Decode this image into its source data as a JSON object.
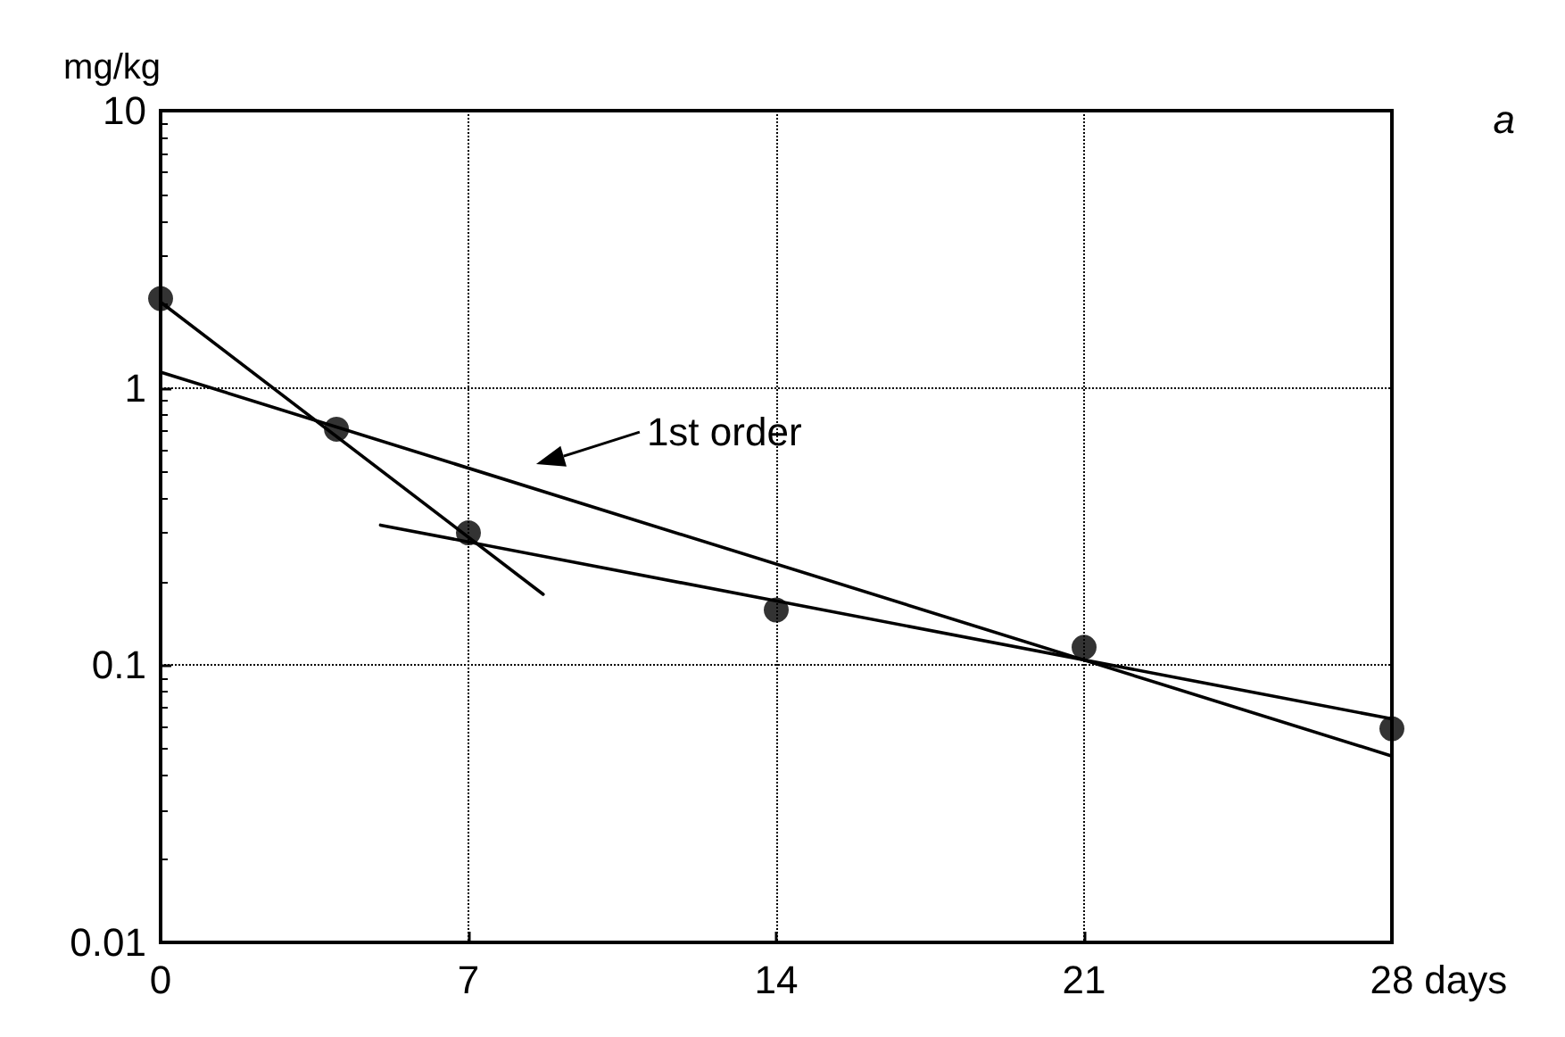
{
  "chart_data": {
    "type": "scatter",
    "ylabel": "mg/kg",
    "xlabel": "days",
    "annotations": [
      "1st order",
      "a"
    ],
    "xlim": [
      0,
      28
    ],
    "xticks": [
      0,
      7,
      14,
      21,
      28
    ],
    "ylim": [
      0.01,
      10
    ],
    "yticks": [
      0.01,
      0.1,
      1,
      10
    ],
    "log": "y",
    "grid": true,
    "series": [
      {
        "color": "#000000",
        "marker": "circle",
        "x": [
          0,
          4,
          7,
          14,
          21,
          28
        ],
        "values": [
          2.1,
          0.71,
          0.3,
          0.158,
          0.116,
          0.059
        ]
      },
      {
        "type": "line",
        "color": "#000000",
        "marker": "none",
        "line_style": "solid",
        "x": [
          0,
          28
        ],
        "values": [
          1.14,
          0.047
        ]
      },
      {
        "type": "line",
        "color": "#000000",
        "marker": "none",
        "line_style": "solid",
        "x": [
          0,
          8.7
        ],
        "values": [
          2.04,
          0.18
        ]
      },
      {
        "type": "line",
        "color": "#000000",
        "marker": "none",
        "line_style": "solid",
        "x": [
          5,
          28
        ],
        "values": [
          0.32,
          0.064
        ]
      }
    ]
  }
}
